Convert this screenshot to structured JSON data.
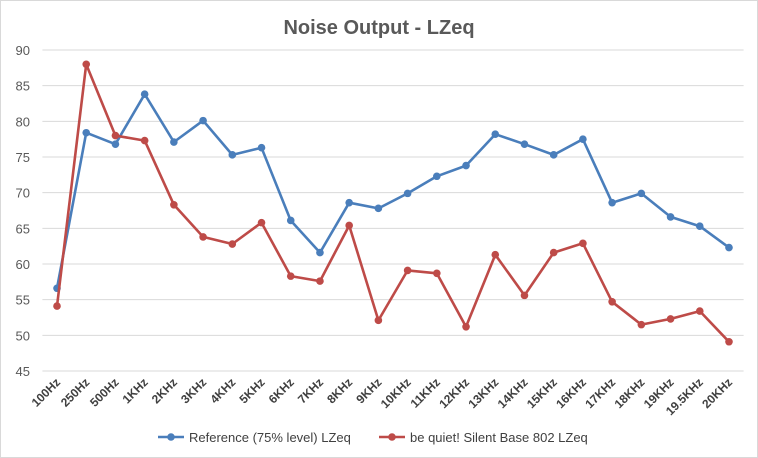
{
  "chart_data": {
    "type": "line",
    "title": "Noise Output  - LZeq",
    "xlabel": "",
    "ylabel": "",
    "ylim": [
      45,
      90
    ],
    "yticks": [
      45,
      50,
      55,
      60,
      65,
      70,
      75,
      80,
      85,
      90
    ],
    "grid": true,
    "legend_position": "bottom",
    "categories": [
      "100Hz",
      "250Hz",
      "500Hz",
      "1KHz",
      "2KHz",
      "3KHz",
      "4KHz",
      "5KHz",
      "6KHz",
      "7KHz",
      "8KHz",
      "9KHz",
      "10KHz",
      "11KHz",
      "12KHz",
      "13KHz",
      "14KHz",
      "15KHz",
      "16KHz",
      "17KHz",
      "18KHz",
      "19KHz",
      "19.5KHz",
      "20KHz"
    ],
    "series": [
      {
        "name": "Reference (75% level) LZeq",
        "color": "#4a7ebb",
        "values": [
          56.6,
          78.4,
          76.8,
          83.8,
          77.1,
          80.1,
          75.3,
          76.3,
          66.1,
          61.6,
          68.6,
          67.8,
          69.9,
          72.3,
          73.8,
          78.2,
          76.8,
          75.3,
          77.5,
          68.6,
          69.9,
          66.6,
          65.3,
          62.3
        ]
      },
      {
        "name": "be quiet! Silent Base 802 LZeq",
        "color": "#be4b48",
        "values": [
          54.1,
          88.0,
          78.0,
          77.3,
          68.3,
          63.8,
          62.8,
          65.8,
          58.3,
          57.6,
          65.4,
          52.1,
          59.1,
          58.7,
          51.2,
          61.3,
          55.6,
          61.6,
          62.9,
          54.7,
          51.5,
          52.3,
          53.4,
          49.1
        ]
      }
    ]
  }
}
